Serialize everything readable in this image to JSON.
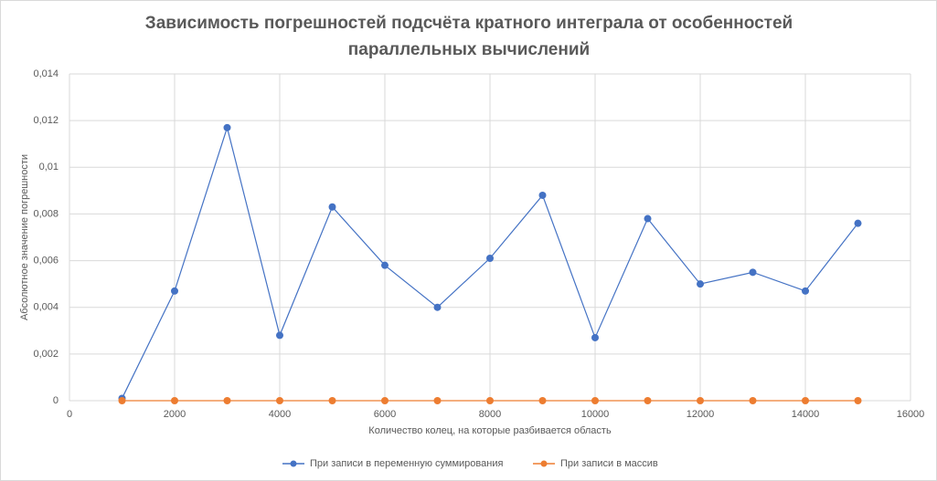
{
  "chart_data": {
    "type": "scatter_line",
    "title": "Зависимость погрешностей подсчёта кратного интеграла от особенностей параллельных вычислений",
    "x_label": "Количество колец, на которые разбивается область",
    "y_label": "Абсолютное значение погрешности",
    "x": [
      1000,
      2000,
      3000,
      4000,
      5000,
      6000,
      7000,
      8000,
      9000,
      10000,
      11000,
      12000,
      13000,
      14000,
      15000
    ],
    "series": [
      {
        "name": "При записи в переменную суммирования",
        "color": "#4472c4",
        "values": [
          0.0001,
          0.0047,
          0.0117,
          0.0028,
          0.0083,
          0.0058,
          0.004,
          0.0061,
          0.0088,
          0.0027,
          0.0078,
          0.005,
          0.0055,
          0.0047,
          0.0076
        ]
      },
      {
        "name": "При записи в массив",
        "color": "#ed7d31",
        "values": [
          0,
          0,
          0,
          0,
          0,
          0,
          0,
          0,
          0,
          0,
          0,
          0,
          0,
          0,
          0
        ]
      }
    ],
    "xlim": [
      0,
      16000
    ],
    "xticks": [
      0,
      2000,
      4000,
      6000,
      8000,
      10000,
      12000,
      14000,
      16000
    ],
    "ylim": [
      0,
      0.014
    ],
    "yticks": [
      0,
      {
        "value": 0.002,
        "label": "0,002"
      },
      {
        "value": 0.004,
        "label": "0,004"
      },
      {
        "value": 0.006,
        "label": "0,006"
      },
      {
        "value": 0.008,
        "label": "0,008"
      },
      {
        "value": 0.01,
        "label": "0,01"
      },
      {
        "value": 0.012,
        "label": "0,012"
      },
      {
        "value": 0.014,
        "label": "0,014"
      }
    ],
    "grid": true,
    "legend": "bottom"
  }
}
